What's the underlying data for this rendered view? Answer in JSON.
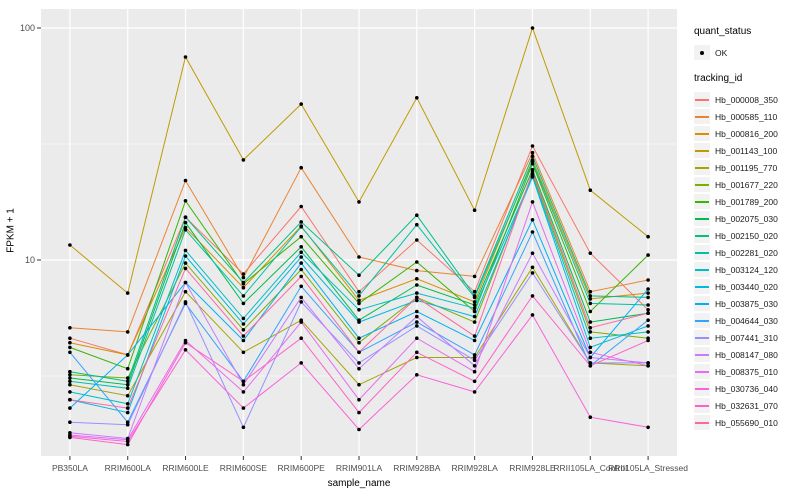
{
  "figure": {
    "y_axis": {
      "label": "FPKM + 1",
      "scale": "log10",
      "ticks": [
        {
          "text": "100",
          "value": 100
        },
        {
          "text": "10",
          "value": 10
        }
      ],
      "minor_break_values": [
        31.62,
        3.162
      ]
    },
    "x_axis": {
      "label": "sample_name"
    },
    "legend": {
      "quant_status_title": "quant_status",
      "quant_status_items": [
        {
          "label": "OK",
          "shape": "point"
        }
      ],
      "tracking_id_title": "tracking_id"
    },
    "colors": {
      "panel_bg": "#ebebeb",
      "grid_major": "#ffffff",
      "grid_minor": "#ffffff",
      "tick_mark": "#333333",
      "axis_text": "#4d4d4d",
      "point": "#000000",
      "legend_key_bg": "#f2f2f2"
    }
  },
  "chart_data": {
    "type": "line",
    "title": "",
    "xlabel": "sample_name",
    "ylabel": "FPKM + 1",
    "y_scale": "log10",
    "ylim": [
      1.45,
      120
    ],
    "grid": true,
    "legend_position": "right",
    "categories": [
      "PB350LA",
      "RRIM600LA",
      "RRIM600LE",
      "RRIM600SE",
      "RRIM600PE",
      "RRIM901LA",
      "RRIM928BA",
      "RRIM928LA",
      "RRIM928LE",
      "RRII105LA_Control",
      "RRII105LA_Stressed"
    ],
    "quant_status": "OK",
    "series": [
      {
        "name": "Hb_000008_350",
        "color": "#F8766D",
        "values": [
          4.6,
          3.9,
          15.3,
          8.7,
          17.0,
          7.3,
          12.2,
          7.3,
          31.0,
          10.7,
          6.1
        ]
      },
      {
        "name": "Hb_000585_110",
        "color": "#EA8331",
        "values": [
          5.1,
          4.9,
          22.0,
          8.4,
          25.0,
          10.3,
          9.0,
          8.5,
          29.0,
          7.3,
          8.2
        ]
      },
      {
        "name": "Hb_000816_200",
        "color": "#D89000",
        "values": [
          4.4,
          3.9,
          13.8,
          7.6,
          14.0,
          6.7,
          8.3,
          6.6,
          27.0,
          6.8,
          7.2
        ]
      },
      {
        "name": "Hb_001143_100",
        "color": "#C09B00",
        "values": [
          11.6,
          7.2,
          75.0,
          27.0,
          47.0,
          17.8,
          50.0,
          16.4,
          100.0,
          20.0,
          12.6
        ]
      },
      {
        "name": "Hb_001195_770",
        "color": "#A3A500",
        "values": [
          2.9,
          2.6,
          7.3,
          4.0,
          5.5,
          2.9,
          3.8,
          3.8,
          9.3,
          3.6,
          3.5
        ]
      },
      {
        "name": "Hb_001677_220",
        "color": "#7CAE00",
        "values": [
          3.2,
          3.1,
          9.7,
          5.0,
          9.1,
          4.4,
          6.9,
          5.4,
          23.5,
          4.9,
          4.6
        ]
      },
      {
        "name": "Hb_001789_200",
        "color": "#39B600",
        "values": [
          4.2,
          3.4,
          18.0,
          7.9,
          12.6,
          6.5,
          9.8,
          6.0,
          26.0,
          6.0,
          10.5
        ]
      },
      {
        "name": "Hb_002075_030",
        "color": "#00BB4E",
        "values": [
          3.1,
          2.9,
          14.5,
          6.5,
          11.4,
          5.5,
          7.8,
          6.4,
          24.5,
          5.4,
          5.9
        ]
      },
      {
        "name": "Hb_002150_020",
        "color": "#00C087",
        "values": [
          3.3,
          3.0,
          15.3,
          8.0,
          14.6,
          8.6,
          15.6,
          7.0,
          28.0,
          7.0,
          6.9
        ]
      },
      {
        "name": "Hb_002281_020",
        "color": "#00C1A3",
        "values": [
          3.0,
          2.8,
          13.5,
          7.0,
          13.9,
          7.0,
          14.2,
          6.9,
          26.5,
          6.5,
          6.4
        ]
      },
      {
        "name": "Hb_003124_120",
        "color": "#00BFC4",
        "values": [
          2.7,
          2.4,
          11.0,
          5.6,
          10.8,
          6.1,
          7.2,
          6.2,
          23.0,
          4.6,
          4.9
        ]
      },
      {
        "name": "Hb_003440_020",
        "color": "#00BAE0",
        "values": [
          2.5,
          2.2,
          10.4,
          5.3,
          10.3,
          5.4,
          6.7,
          5.7,
          22.8,
          4.2,
          5.2
        ]
      },
      {
        "name": "Hb_003875_030",
        "color": "#00B0F6",
        "values": [
          2.3,
          3.9,
          8.0,
          4.5,
          9.7,
          4.6,
          6.0,
          4.5,
          14.9,
          3.8,
          7.5
        ]
      },
      {
        "name": "Hb_004644_030",
        "color": "#35A2FF",
        "values": [
          4.0,
          2.0,
          6.5,
          3.0,
          7.7,
          4.0,
          5.4,
          3.9,
          13.2,
          3.5,
          5.5
        ]
      },
      {
        "name": "Hb_007441_310",
        "color": "#9590FF",
        "values": [
          2.0,
          1.95,
          6.6,
          1.9,
          6.6,
          3.6,
          5.2,
          3.7,
          8.8,
          3.6,
          3.6
        ]
      },
      {
        "name": "Hb_008147_080",
        "color": "#C77CFF",
        "values": [
          1.8,
          1.7,
          8.0,
          2.9,
          6.9,
          3.4,
          5.7,
          3.5,
          10.7,
          3.8,
          3.6
        ]
      },
      {
        "name": "Hb_008375_010",
        "color": "#E76BF3",
        "values": [
          1.76,
          1.68,
          4.5,
          2.7,
          5.4,
          2.5,
          4.6,
          3.3,
          17.8,
          4.0,
          3.5
        ]
      },
      {
        "name": "Hb_030736_040",
        "color": "#FA62DB",
        "values": [
          1.74,
          1.65,
          4.1,
          2.3,
          3.6,
          1.86,
          3.2,
          2.7,
          5.8,
          2.1,
          1.9
        ]
      },
      {
        "name": "Hb_032631_070",
        "color": "#FF61CC",
        "values": [
          1.72,
          1.6,
          4.4,
          3.0,
          4.6,
          2.2,
          4.0,
          3.0,
          7.0,
          3.5,
          4.5
        ]
      },
      {
        "name": "Hb_055690_010",
        "color": "#FF67A4",
        "values": [
          2.5,
          2.3,
          9.2,
          4.7,
          8.5,
          4.0,
          6.9,
          4.7,
          24.0,
          5.1,
          5.9
        ]
      }
    ]
  }
}
